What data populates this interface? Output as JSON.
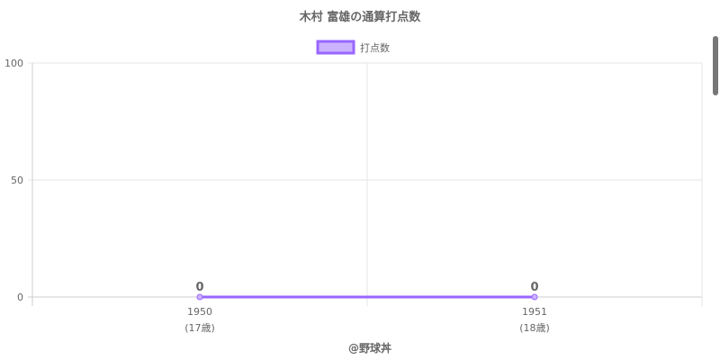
{
  "chart_data": {
    "type": "line",
    "title": "木村 富雄の通算打点数",
    "categories": [
      "1950",
      "1951"
    ],
    "category_sublabels": [
      "(17歳)",
      "(18歳)"
    ],
    "series": [
      {
        "name": "打点数",
        "values": [
          0,
          0
        ],
        "color": "#9966ff",
        "fill": "#ccb3ff"
      }
    ],
    "data_labels": [
      "0",
      "0"
    ],
    "ylim": [
      0,
      100
    ],
    "yticks": [
      "0",
      "50",
      "100"
    ],
    "grid": true,
    "legend": "top"
  },
  "credit": "@野球丼"
}
